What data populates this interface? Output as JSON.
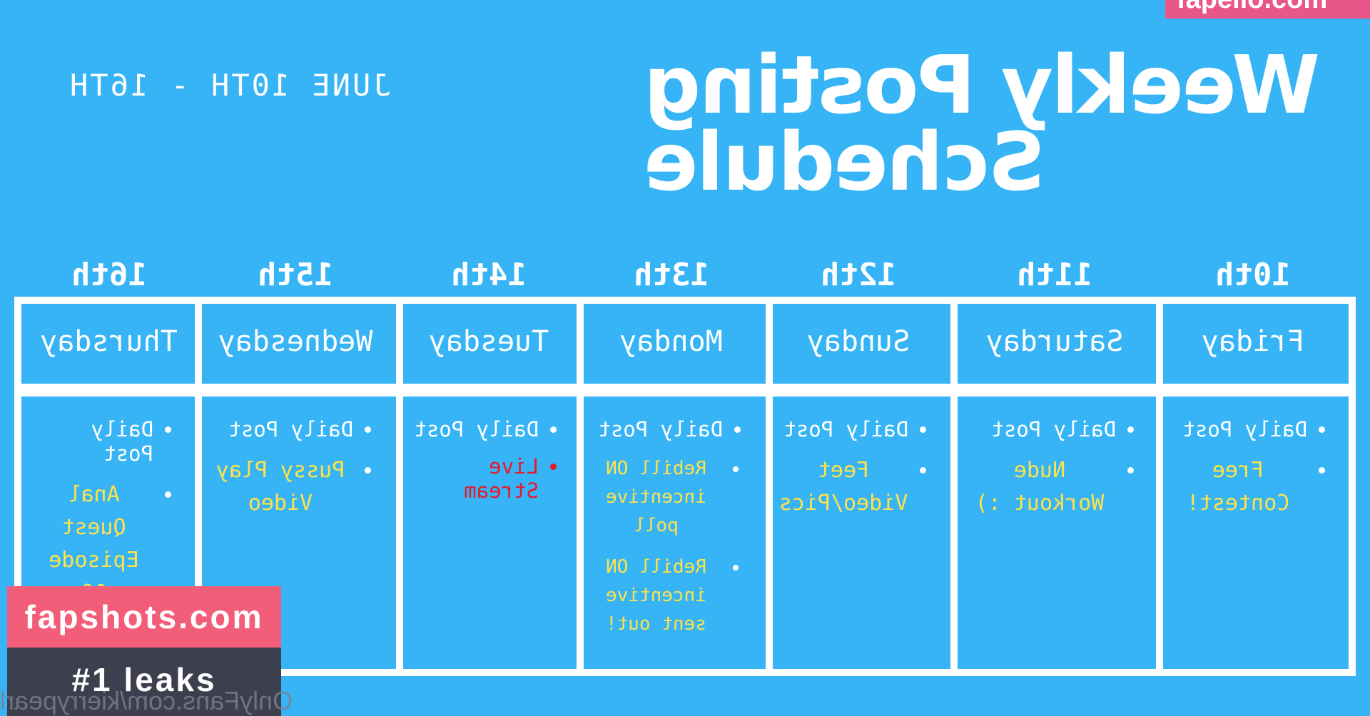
{
  "watermark_top": "fapello.com",
  "title": {
    "line1": "Weekly Posting",
    "line2": "Schedule"
  },
  "date_range": "JUNE 10TH - 16TH",
  "columns": [
    {
      "date": "10th",
      "day": "Friday",
      "items": [
        {
          "text": "Daily Post",
          "style": "white"
        },
        {
          "text": "Free Contest!",
          "style": "yellow"
        }
      ]
    },
    {
      "date": "11th",
      "day": "Saturday",
      "items": [
        {
          "text": "Daily Post",
          "style": "white"
        },
        {
          "text": "Nude Workout :)",
          "style": "yellow"
        }
      ]
    },
    {
      "date": "12th",
      "day": "Sunday",
      "items": [
        {
          "text": "Daily Post",
          "style": "white"
        },
        {
          "text": "Feet Video/Pics",
          "style": "yellow"
        }
      ]
    },
    {
      "date": "13th",
      "day": "Monday",
      "items": [
        {
          "text": "Daily Post",
          "style": "white"
        },
        {
          "text": "Rebill ON incentive poll",
          "style": "yellow small"
        },
        {
          "text": "Rebill ON incentive sent out!",
          "style": "yellow small"
        }
      ]
    },
    {
      "date": "14th",
      "day": "Tuesday",
      "items": [
        {
          "text": "Daily Post",
          "style": "white"
        },
        {
          "text": "Live Stream",
          "style": "red"
        }
      ]
    },
    {
      "date": "15th",
      "day": "Wednesday",
      "items": [
        {
          "text": "Daily Post",
          "style": "white"
        },
        {
          "text": "Pussy Play Video",
          "style": "yellow"
        }
      ]
    },
    {
      "date": "16th",
      "day": "Thursday",
      "items": [
        {
          "text": "Daily Post",
          "style": "white"
        },
        {
          "text": "Anal Quest Episode 10",
          "style": "yellow"
        }
      ]
    }
  ],
  "watermark_bottom": {
    "line1": "fapshots.com",
    "line2": "#1 leaks"
  },
  "handle": "OnlyFans.com/kierrypearl",
  "colors": {
    "background": "#36b4f5",
    "frame": "#ffffff",
    "highlight": "#ffe24a",
    "alert": "#e8192c",
    "watermark_pink": "#f25d7a",
    "watermark_dark": "#3d3f4f"
  }
}
